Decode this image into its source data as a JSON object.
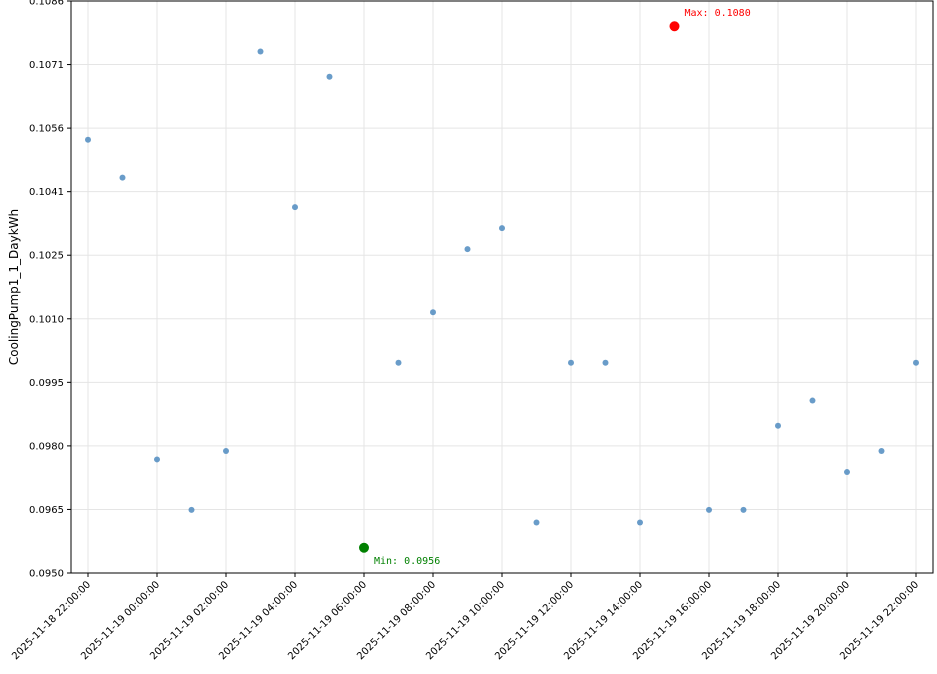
{
  "chart_data": {
    "type": "scatter",
    "title": "",
    "xlabel": "",
    "ylabel": "CoolingPump1_1_DaykWh",
    "grid": true,
    "x": [
      "2025-11-18 22:00:00",
      "2025-11-18 23:00:00",
      "2025-11-19 00:00:00",
      "2025-11-19 01:00:00",
      "2025-11-19 02:00:00",
      "2025-11-19 03:00:00",
      "2025-11-19 04:00:00",
      "2025-11-19 05:00:00",
      "2025-11-19 06:00:00",
      "2025-11-19 07:00:00",
      "2025-11-19 08:00:00",
      "2025-11-19 09:00:00",
      "2025-11-19 10:00:00",
      "2025-11-19 11:00:00",
      "2025-11-19 12:00:00",
      "2025-11-19 13:00:00",
      "2025-11-19 14:00:00",
      "2025-11-19 15:00:00",
      "2025-11-19 16:00:00",
      "2025-11-19 17:00:00",
      "2025-11-19 18:00:00",
      "2025-11-19 19:00:00",
      "2025-11-19 20:00:00",
      "2025-11-19 21:00:00",
      "2025-11-19 22:00:00"
    ],
    "y": [
      0.1053,
      0.1044,
      0.0977,
      0.0965,
      0.0979,
      0.1074,
      0.1037,
      0.1068,
      0.0956,
      0.1,
      0.1012,
      0.1027,
      0.1032,
      0.0962,
      0.1,
      0.1,
      0.0962,
      0.108,
      0.0965,
      0.0965,
      0.0985,
      0.0991,
      0.0974,
      0.0979,
      0.1
    ],
    "ylim": [
      0.095,
      0.1086
    ],
    "yticks": [
      "0.0950",
      "0.0965",
      "0.0980",
      "0.0995",
      "0.1010",
      "0.1025",
      "0.1041",
      "0.1056",
      "0.1071",
      "0.1086"
    ],
    "xticks": [
      "2025-11-18 22:00:00",
      "2025-11-19 00:00:00",
      "2025-11-19 02:00:00",
      "2025-11-19 04:00:00",
      "2025-11-19 06:00:00",
      "2025-11-19 08:00:00",
      "2025-11-19 10:00:00",
      "2025-11-19 12:00:00",
      "2025-11-19 14:00:00",
      "2025-11-19 16:00:00",
      "2025-11-19 18:00:00",
      "2025-11-19 20:00:00",
      "2025-11-19 22:00:00"
    ],
    "max_label": "Max: 0.1080",
    "min_label": "Min: 0.0956",
    "max_index": 17,
    "min_index": 8,
    "colors": {
      "point": "#4f8bbf",
      "max": "#ff0000",
      "min": "#008000",
      "grid": "#e5e5e5",
      "axis": "#000000"
    }
  }
}
